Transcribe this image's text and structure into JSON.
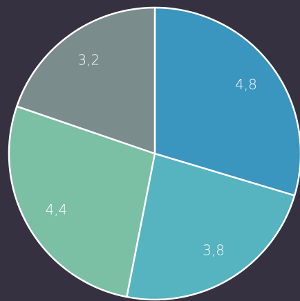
{
  "chart_data": {
    "type": "pie",
    "values": [
      4.8,
      3.8,
      4.4,
      3.2
    ],
    "value_labels": [
      "4,8",
      "3,8",
      "4,4",
      "3,2"
    ],
    "colors": [
      "#3a95bf",
      "#56b3c0",
      "#7bbfa5",
      "#7b8c8d"
    ]
  }
}
